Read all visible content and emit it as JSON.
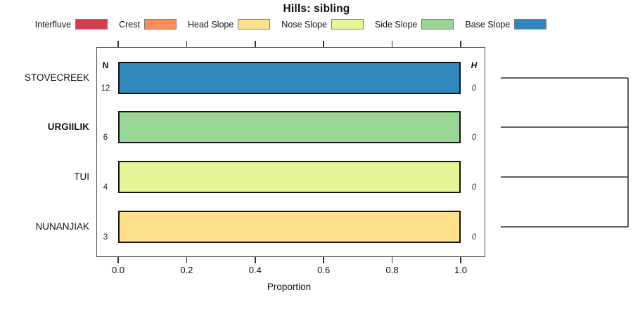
{
  "title": "Hills: sibling",
  "x_axis_title": "Proportion",
  "columns": {
    "n_header": "N",
    "h_header": "H"
  },
  "chart_data": {
    "type": "bar",
    "orientation": "horizontal",
    "title": "Hills: sibling",
    "xlabel": "Proportion",
    "ylabel": "",
    "xlim": [
      0.0,
      1.0
    ],
    "x_ticks": [
      "0.0",
      "0.2",
      "0.4",
      "0.6",
      "0.8",
      "1.0"
    ],
    "x_tick_values": [
      0.0,
      0.2,
      0.4,
      0.6,
      0.8,
      1.0
    ],
    "grid": false,
    "legend_position": "top",
    "legend": [
      {
        "label": "Interfluve",
        "color": "#D53E4F"
      },
      {
        "label": "Crest",
        "color": "#FC8D59"
      },
      {
        "label": "Head Slope",
        "color": "#FEE08B"
      },
      {
        "label": "Nose Slope",
        "color": "#E6F598"
      },
      {
        "label": "Side Slope",
        "color": "#99D594"
      },
      {
        "label": "Base Slope",
        "color": "#3288BD"
      }
    ],
    "rows": [
      {
        "label": "STOVECREEK",
        "bold": false,
        "n": "12",
        "h": "0",
        "category": "Base Slope",
        "proportion": 1.0,
        "color": "#3288BD"
      },
      {
        "label": "URGIILIK",
        "bold": true,
        "n": "6",
        "h": "0",
        "category": "Side Slope",
        "proportion": 1.0,
        "color": "#99D594"
      },
      {
        "label": "TUI",
        "bold": false,
        "n": "4",
        "h": "0",
        "category": "Nose Slope",
        "proportion": 1.0,
        "color": "#E6F598"
      },
      {
        "label": "NUNANJIAK",
        "bold": false,
        "n": "3",
        "h": "0",
        "category": "Head Slope",
        "proportion": 1.0,
        "color": "#FEE08B"
      }
    ],
    "dendrogram": {
      "leaves": [
        "STOVECREEK",
        "URGIILIK",
        "TUI",
        "NUNANJIAK"
      ],
      "structure": "all four leaves join at equal maximum height at the right edge"
    }
  }
}
